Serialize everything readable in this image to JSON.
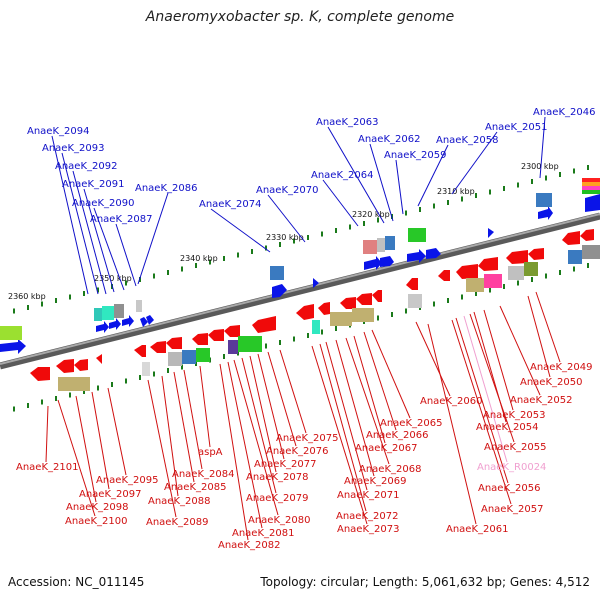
{
  "title": "Anaeromyxobacter sp. K, complete genome",
  "footer": {
    "accession": "Accession: NC_011145",
    "info": "Topology: circular; Length: 5,061,632 bp; Genes: 4,512"
  },
  "colors": {
    "top_labels": "#1010c8",
    "bottom_labels": "#d01010",
    "rna_label": "#f0a0d0",
    "backbone": "#7a7a7a"
  },
  "position_labels": [
    "2300 kbp",
    "2310 kbp",
    "2320 kbp",
    "2330 kbp",
    "2340 kbp",
    "2350 kbp",
    "2360 kbp"
  ],
  "top_genes": [
    "AnaeK_2046",
    "AnaeK_2051",
    "AnaeK_2058",
    "AnaeK_2059",
    "AnaeK_2062",
    "AnaeK_2063",
    "AnaeK_2064",
    "AnaeK_2070",
    "AnaeK_2074",
    "AnaeK_2086",
    "AnaeK_2087",
    "AnaeK_2090",
    "AnaeK_2091",
    "AnaeK_2092",
    "AnaeK_2093",
    "AnaeK_2094"
  ],
  "bottom_genes": [
    "AnaeK_2049",
    "AnaeK_2050",
    "AnaeK_2052",
    "AnaeK_2053",
    "AnaeK_2054",
    "AnaeK_2055",
    "AnaeK_R0024",
    "AnaeK_2056",
    "AnaeK_2057",
    "AnaeK_2060",
    "AnaeK_2061",
    "AnaeK_2065",
    "AnaeK_2066",
    "AnaeK_2067",
    "AnaeK_2068",
    "AnaeK_2069",
    "AnaeK_2071",
    "AnaeK_2072",
    "AnaeK_2073",
    "AnaeK_2075",
    "AnaeK_2076",
    "AnaeK_2077",
    "AnaeK_2078",
    "AnaeK_2079",
    "AnaeK_2080",
    "AnaeK_2081",
    "AnaeK_2082",
    "aspA",
    "AnaeK_2084",
    "AnaeK_2085",
    "AnaeK_2088",
    "AnaeK_2089",
    "AnaeK_2095",
    "AnaeK_2097",
    "AnaeK_2098",
    "AnaeK_2100",
    "AnaeK_2101"
  ]
}
